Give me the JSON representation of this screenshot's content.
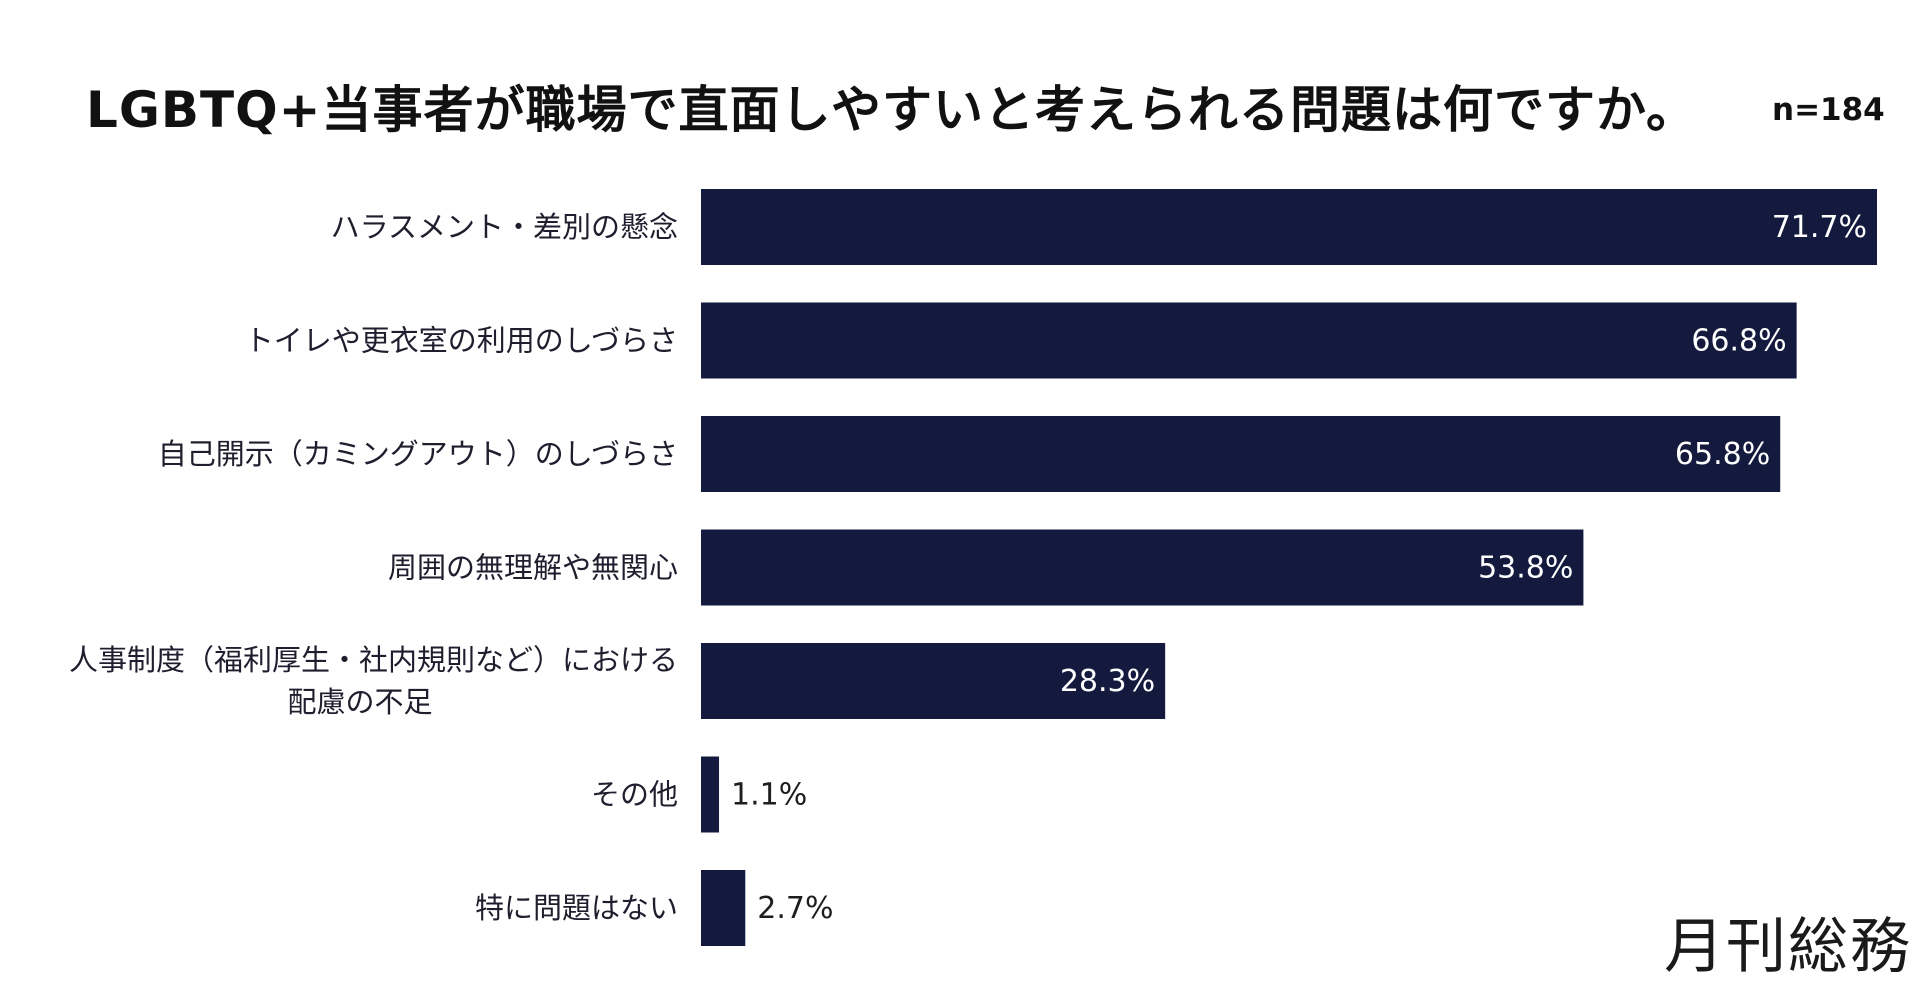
{
  "chart_data": {
    "type": "bar",
    "orientation": "horizontal",
    "title": "LGBTQ+当事者が職場で直面しやすいと考えられる問題は何ですか。",
    "sample_size": "n=184",
    "categories": [
      "ハラスメント・差別の懸念",
      "トイレや更衣室の利用のしづらさ",
      "自己開示（カミングアウト）のしづらさ",
      "周囲の無理解や無関心",
      "人事制度（福利厚生・社内規則など）における\n配慮の不足",
      "その他",
      "特に問題はない"
    ],
    "values": [
      71.7,
      66.8,
      65.8,
      53.8,
      28.3,
      1.1,
      2.7
    ],
    "value_labels": [
      "71.7%",
      "66.8%",
      "65.8%",
      "53.8%",
      "28.3%",
      "1.1%",
      "2.7%"
    ],
    "unit": "%",
    "xlim": [
      0,
      71.7
    ],
    "grid": false,
    "legend": "none",
    "bar_color": "#131a3d",
    "inside_label_color": "#ffffff",
    "outside_label_color": "#1e1e1e"
  },
  "brand": {
    "logo_text": "月刊総務"
  }
}
